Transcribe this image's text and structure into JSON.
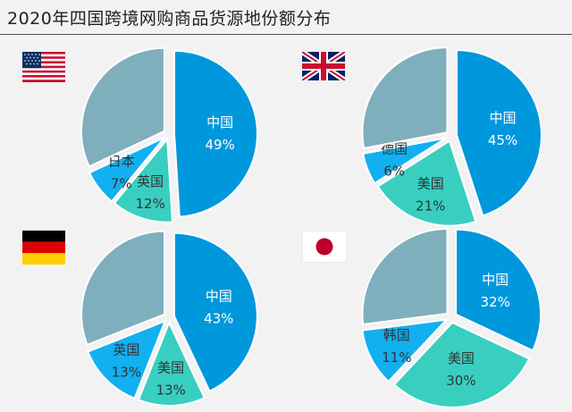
{
  "title": "2020年四国跨境网购商品货源地份额分布",
  "colors": {
    "rest": "#7fafbd",
    "china": "#0098dc",
    "usa": "#38cfc1",
    "other": "#12b0f0",
    "label_dark": "#333333",
    "label_light": "#ffffff"
  },
  "chart_data": [
    {
      "type": "pie",
      "country_flag": "usa-flag-icon",
      "slices": [
        {
          "label": "中国",
          "pct": "49%",
          "value": 49,
          "color": "china",
          "text": "light"
        },
        {
          "label": "英国",
          "pct": "12%",
          "value": 12,
          "color": "usa",
          "text": "dark"
        },
        {
          "label": "日本",
          "pct": "7%",
          "value": 7,
          "color": "other",
          "text": "dark"
        },
        {
          "label": "",
          "pct": "",
          "value": 32,
          "color": "rest",
          "text": "dark"
        }
      ]
    },
    {
      "type": "pie",
      "country_flag": "uk-flag-icon",
      "slices": [
        {
          "label": "中国",
          "pct": "45%",
          "value": 45,
          "color": "china",
          "text": "light"
        },
        {
          "label": "美国",
          "pct": "21%",
          "value": 21,
          "color": "usa",
          "text": "dark"
        },
        {
          "label": "德国",
          "pct": "6%",
          "value": 6,
          "color": "other",
          "text": "dark"
        },
        {
          "label": "",
          "pct": "",
          "value": 28,
          "color": "rest",
          "text": "dark"
        }
      ]
    },
    {
      "type": "pie",
      "country_flag": "germany-flag-icon",
      "slices": [
        {
          "label": "中国",
          "pct": "43%",
          "value": 43,
          "color": "china",
          "text": "light"
        },
        {
          "label": "美国",
          "pct": "13%",
          "value": 13,
          "color": "usa",
          "text": "dark"
        },
        {
          "label": "英国",
          "pct": "13%",
          "value": 13,
          "color": "other",
          "text": "dark"
        },
        {
          "label": "",
          "pct": "",
          "value": 31,
          "color": "rest",
          "text": "dark"
        }
      ]
    },
    {
      "type": "pie",
      "country_flag": "japan-flag-icon",
      "slices": [
        {
          "label": "中国",
          "pct": "32%",
          "value": 32,
          "color": "china",
          "text": "light"
        },
        {
          "label": "美国",
          "pct": "30%",
          "value": 30,
          "color": "usa",
          "text": "dark"
        },
        {
          "label": "韩国",
          "pct": "11%",
          "value": 11,
          "color": "other",
          "text": "dark"
        },
        {
          "label": "",
          "pct": "",
          "value": 27,
          "color": "rest",
          "text": "dark"
        }
      ]
    }
  ]
}
